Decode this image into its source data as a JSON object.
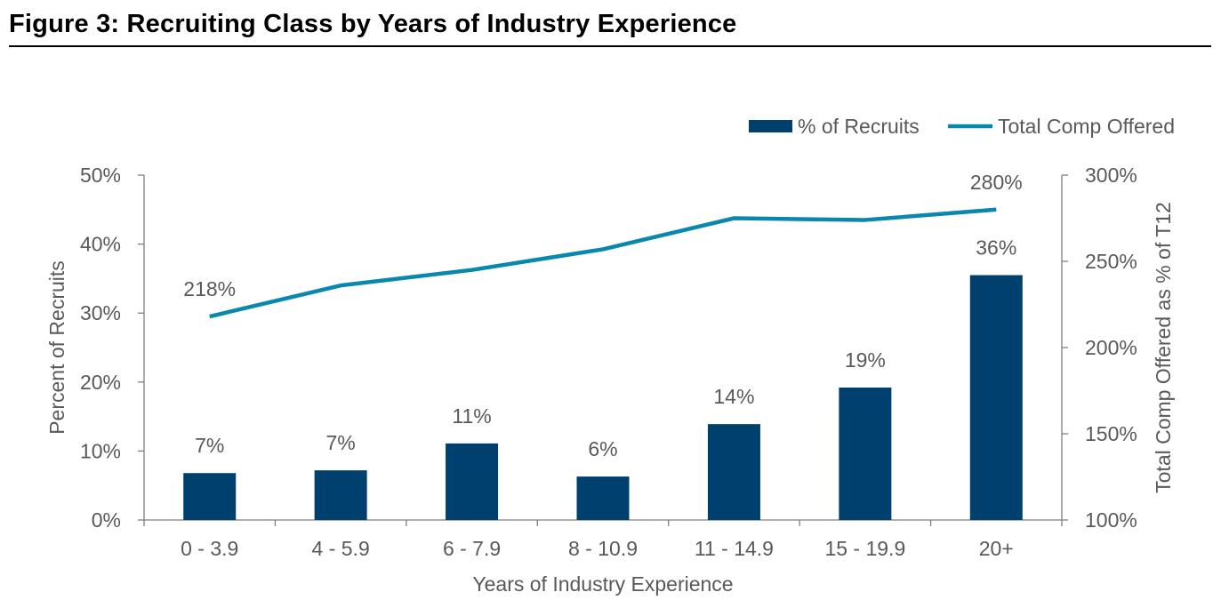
{
  "figure_title": "Figure 3: Recruiting Class by Years of Industry Experience",
  "colors": {
    "bar": "#00406F",
    "line": "#0A87AD",
    "axis": "#7F7F7F",
    "text": "#595959",
    "title": "#000000"
  },
  "chart_data": {
    "type": "bar",
    "title": "",
    "categories": [
      "0 - 3.9",
      "4 - 5.9",
      "6 - 7.9",
      "8 - 10.9",
      "11 - 14.9",
      "15 - 19.9",
      "20+"
    ],
    "xlabel": "Years of Industry Experience",
    "ylabel": "Percent of Recruits",
    "y2label": "Total Comp Offered as % of T12",
    "ylim": [
      0,
      50
    ],
    "y2lim": [
      100,
      300
    ],
    "yticks": [
      "0%",
      "10%",
      "20%",
      "30%",
      "40%",
      "50%"
    ],
    "y2ticks": [
      "100%",
      "150%",
      "200%",
      "250%",
      "300%"
    ],
    "legend_position": "top-right",
    "grid": false,
    "series": [
      {
        "name": "% of Recruits",
        "type": "bar",
        "axis": "left",
        "values": [
          6.8,
          7.2,
          11.1,
          6.3,
          13.9,
          19.2,
          35.5
        ],
        "labels": [
          "7%",
          "7%",
          "11%",
          "6%",
          "14%",
          "19%",
          "36%"
        ]
      },
      {
        "name": "Total Comp Offered",
        "type": "line",
        "axis": "right",
        "values": [
          218,
          236,
          245,
          257,
          275,
          274,
          280
        ],
        "labels": [
          "218%",
          "",
          "",
          "",
          "",
          "",
          "280%"
        ]
      }
    ]
  }
}
